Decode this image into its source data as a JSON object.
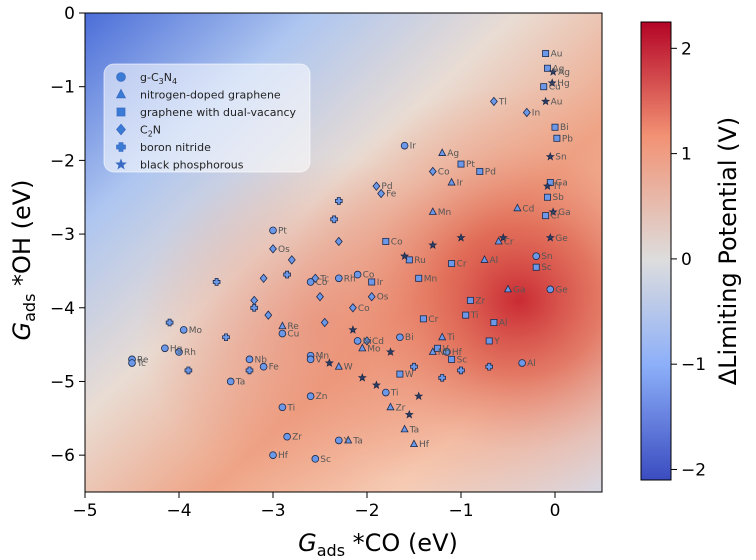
{
  "chart_data": {
    "type": "scatter",
    "xlabel_main": "G",
    "xlabel_sub": "ads",
    "xlabel_rest": " *CO (eV)",
    "ylabel_main": "G",
    "ylabel_sub": "ads",
    "ylabel_rest": " *OH (eV)",
    "xlim": [
      -5,
      0.5
    ],
    "ylim": [
      -6.5,
      0
    ],
    "xticks": [
      -5,
      -4,
      -3,
      -2,
      -1,
      0
    ],
    "yticks": [
      0,
      -1,
      -2,
      -3,
      -4,
      -5,
      -6
    ],
    "xtick_labels": [
      "−5",
      "−4",
      "−3",
      "−2",
      "−1",
      "0"
    ],
    "ytick_labels": [
      "0",
      "−1",
      "−2",
      "−3",
      "−4",
      "−5",
      "−6"
    ],
    "colorbar": {
      "label": "ΔLimiting Potential (V)",
      "range": [
        -2.1,
        2.25
      ],
      "ticks": [
        2,
        1,
        0,
        -1,
        -2
      ],
      "tick_labels": [
        "2",
        "1",
        "0",
        "−1",
        "−2"
      ],
      "colors": [
        "#3b4cc0",
        "#dddddd",
        "#b40426"
      ]
    },
    "legend": {
      "placement": "upper-left",
      "entries": [
        {
          "label_main": "g-C",
          "label_sub": "3",
          "label_mid": "N",
          "label_sub2": "4",
          "marker": "circle"
        },
        {
          "label_main": "nitrogen-doped graphene",
          "marker": "triangle"
        },
        {
          "label_main": "graphene with dual-vacancy",
          "marker": "square"
        },
        {
          "label_main": "C",
          "label_sub": "2",
          "label_mid": "N",
          "marker": "diamond"
        },
        {
          "label_main": "boron nitride",
          "marker": "plus"
        },
        {
          "label_main": "black phosphorous",
          "marker": "star"
        }
      ]
    },
    "series": [
      {
        "name": "g-C3N4",
        "marker": "circle",
        "points": [
          {
            "x": -1.6,
            "y": -1.8,
            "label": "Ir"
          },
          {
            "x": -3.0,
            "y": -2.95,
            "label": "Pt"
          },
          {
            "x": -2.1,
            "y": -3.55,
            "label": "Co"
          },
          {
            "x": -2.3,
            "y": -3.6,
            "label": "Rh"
          },
          {
            "x": -2.1,
            "y": -4.45,
            "label": "Ni"
          },
          {
            "x": -1.65,
            "y": -4.4,
            "label": "Bi"
          },
          {
            "x": -2.9,
            "y": -4.35,
            "label": "Cu"
          },
          {
            "x": -3.25,
            "y": -4.7,
            "label": "Nb"
          },
          {
            "x": -3.1,
            "y": -4.8,
            "label": "Fe"
          },
          {
            "x": -2.6,
            "y": -4.65,
            "label": "Mn"
          },
          {
            "x": -3.45,
            "y": -5.0,
            "label": "Ta"
          },
          {
            "x": -2.6,
            "y": -4.7,
            "label": "V"
          },
          {
            "x": -2.6,
            "y": -5.2,
            "label": "Zn"
          },
          {
            "x": -2.9,
            "y": -5.35,
            "label": "Ti"
          },
          {
            "x": -1.8,
            "y": -5.15,
            "label": "Ti"
          },
          {
            "x": -2.85,
            "y": -5.75,
            "label": "Zr"
          },
          {
            "x": -2.3,
            "y": -5.8,
            "label": "Y"
          },
          {
            "x": -3.0,
            "y": -6.0,
            "label": "Hf"
          },
          {
            "x": -2.55,
            "y": -6.05,
            "label": "Sc"
          },
          {
            "x": -3.95,
            "y": -4.3,
            "label": "Mo"
          },
          {
            "x": -4.15,
            "y": -4.55,
            "label": "Hg"
          },
          {
            "x": -4.0,
            "y": -4.6,
            "label": "Rh"
          },
          {
            "x": -4.5,
            "y": -4.7,
            "label": "Re"
          },
          {
            "x": -4.5,
            "y": -4.75,
            "label": "Tc"
          },
          {
            "x": -0.35,
            "y": -4.75,
            "label": "Al"
          },
          {
            "x": -0.05,
            "y": -3.75,
            "label": "Ge"
          },
          {
            "x": -0.2,
            "y": -3.3,
            "label": "Sn"
          },
          {
            "x": -1.15,
            "y": -4.6,
            "label": "Hf"
          },
          {
            "x": -2.6,
            "y": -3.65,
            "label": "Co"
          }
        ]
      },
      {
        "name": "nitrogen-doped graphene",
        "marker": "triangle",
        "points": [
          {
            "x": -1.2,
            "y": -1.9,
            "label": "Ag"
          },
          {
            "x": -1.1,
            "y": -2.3,
            "label": "Ir"
          },
          {
            "x": -1.3,
            "y": -2.7,
            "label": "Mn"
          },
          {
            "x": -0.4,
            "y": -2.65,
            "label": "Cd"
          },
          {
            "x": -0.6,
            "y": -3.1,
            "label": "Cr"
          },
          {
            "x": -0.75,
            "y": -3.35,
            "label": "Al"
          },
          {
            "x": -0.5,
            "y": -3.75,
            "label": "Ga"
          },
          {
            "x": -2.9,
            "y": -4.25,
            "label": "Re"
          },
          {
            "x": -2.05,
            "y": -4.55,
            "label": "Mo"
          },
          {
            "x": -1.3,
            "y": -4.6,
            "label": "Nb"
          },
          {
            "x": -1.2,
            "y": -4.4,
            "label": "Ti"
          },
          {
            "x": -2.3,
            "y": -4.8,
            "label": "W"
          },
          {
            "x": -1.6,
            "y": -5.65,
            "label": "Ta"
          },
          {
            "x": -1.75,
            "y": -5.35,
            "label": "Zr"
          },
          {
            "x": -1.5,
            "y": -5.85,
            "label": "Hf"
          },
          {
            "x": -2.2,
            "y": -5.8,
            "label": "Ta"
          }
        ]
      },
      {
        "name": "graphene with dual-vacancy",
        "marker": "square",
        "points": [
          {
            "x": -0.1,
            "y": -0.55,
            "label": "Au"
          },
          {
            "x": -0.08,
            "y": -0.75,
            "label": "Ag"
          },
          {
            "x": -0.12,
            "y": -1.0,
            "label": "Cu"
          },
          {
            "x": 0.0,
            "y": -1.55,
            "label": "Bi"
          },
          {
            "x": 0.02,
            "y": -1.7,
            "label": "Pb"
          },
          {
            "x": -1.0,
            "y": -2.05,
            "label": "Pt"
          },
          {
            "x": -0.8,
            "y": -2.15,
            "label": "Pd"
          },
          {
            "x": -0.05,
            "y": -2.3,
            "label": "Ga"
          },
          {
            "x": -0.08,
            "y": -2.5,
            "label": "Sb"
          },
          {
            "x": -1.8,
            "y": -3.1,
            "label": "Co"
          },
          {
            "x": -1.95,
            "y": -3.65,
            "label": "Ir"
          },
          {
            "x": -1.55,
            "y": -3.35,
            "label": "Ru"
          },
          {
            "x": -1.45,
            "y": -3.6,
            "label": "Mn"
          },
          {
            "x": -1.1,
            "y": -3.4,
            "label": "Cr"
          },
          {
            "x": -0.9,
            "y": -3.9,
            "label": "Zr"
          },
          {
            "x": -0.95,
            "y": -4.1,
            "label": "Ti"
          },
          {
            "x": -1.4,
            "y": -4.15,
            "label": "Cr"
          },
          {
            "x": -0.65,
            "y": -4.2,
            "label": "Al"
          },
          {
            "x": -0.7,
            "y": -4.45,
            "label": "Y"
          },
          {
            "x": -1.25,
            "y": -4.55,
            "label": "V"
          },
          {
            "x": -1.65,
            "y": -4.9,
            "label": "W"
          },
          {
            "x": -1.1,
            "y": -4.7,
            "label": "Sc"
          },
          {
            "x": -0.2,
            "y": -3.45,
            "label": "Sc"
          },
          {
            "x": -0.1,
            "y": -2.75,
            "label": "Cr"
          }
        ]
      },
      {
        "name": "C2N",
        "marker": "diamond",
        "points": [
          {
            "x": -1.3,
            "y": -2.15,
            "label": "Co"
          },
          {
            "x": -1.9,
            "y": -2.35,
            "label": "Pd"
          },
          {
            "x": -1.85,
            "y": -2.45,
            "label": "Fe"
          },
          {
            "x": -2.15,
            "y": -4.0,
            "label": "Co"
          },
          {
            "x": -1.95,
            "y": -3.85,
            "label": "Os"
          },
          {
            "x": -2.0,
            "y": -4.45,
            "label": "Cd"
          },
          {
            "x": -3.0,
            "y": -3.2,
            "label": "Os"
          },
          {
            "x": -2.55,
            "y": -3.6,
            "label": "Tc"
          },
          {
            "x": -0.65,
            "y": -1.2,
            "label": "Tl"
          },
          {
            "x": -0.3,
            "y": -1.35,
            "label": "In"
          },
          {
            "x": -3.1,
            "y": -3.6,
            "label": ""
          },
          {
            "x": -3.2,
            "y": -3.9,
            "label": ""
          },
          {
            "x": -3.05,
            "y": -4.1,
            "label": ""
          },
          {
            "x": -2.8,
            "y": -3.35,
            "label": ""
          },
          {
            "x": -2.3,
            "y": -3.1,
            "label": ""
          },
          {
            "x": -2.5,
            "y": -3.85,
            "label": ""
          },
          {
            "x": -2.45,
            "y": -4.2,
            "label": ""
          }
        ]
      },
      {
        "name": "boron nitride",
        "marker": "plus",
        "points": [
          {
            "x": -4.1,
            "y": -4.2,
            "label": ""
          },
          {
            "x": -3.6,
            "y": -3.65,
            "label": ""
          },
          {
            "x": -3.2,
            "y": -4.0,
            "label": ""
          },
          {
            "x": -3.5,
            "y": -4.4,
            "label": ""
          },
          {
            "x": -3.9,
            "y": -4.85,
            "label": ""
          },
          {
            "x": -3.25,
            "y": -4.85,
            "label": ""
          },
          {
            "x": -2.35,
            "y": -2.8,
            "label": ""
          },
          {
            "x": -2.3,
            "y": -2.55,
            "label": ""
          },
          {
            "x": -2.85,
            "y": -3.55,
            "label": ""
          },
          {
            "x": -1.0,
            "y": -4.85,
            "label": ""
          },
          {
            "x": -1.5,
            "y": -4.8,
            "label": ""
          },
          {
            "x": -1.2,
            "y": -4.95,
            "label": ""
          },
          {
            "x": -0.7,
            "y": -4.8,
            "label": ""
          }
        ]
      },
      {
        "name": "black phosphorous",
        "marker": "star",
        "points": [
          {
            "x": -0.03,
            "y": -0.95,
            "label": "Hg"
          },
          {
            "x": -0.02,
            "y": -0.8,
            "label": "Ag"
          },
          {
            "x": -0.1,
            "y": -1.2,
            "label": "Au"
          },
          {
            "x": -0.05,
            "y": -1.95,
            "label": "Sn"
          },
          {
            "x": -0.08,
            "y": -2.35,
            "label": "Tl"
          },
          {
            "x": -0.02,
            "y": -2.7,
            "label": "Ga"
          },
          {
            "x": -0.05,
            "y": -3.05,
            "label": "Ge"
          },
          {
            "x": -2.15,
            "y": -4.3,
            "label": ""
          },
          {
            "x": -2.4,
            "y": -4.75,
            "label": ""
          },
          {
            "x": -2.05,
            "y": -4.95,
            "label": ""
          },
          {
            "x": -1.75,
            "y": -4.6,
            "label": ""
          },
          {
            "x": -1.9,
            "y": -5.05,
            "label": ""
          },
          {
            "x": -1.45,
            "y": -5.2,
            "label": ""
          },
          {
            "x": -1.55,
            "y": -5.45,
            "label": ""
          },
          {
            "x": -1.3,
            "y": -3.15,
            "label": ""
          },
          {
            "x": -1.6,
            "y": -3.3,
            "label": ""
          },
          {
            "x": -1.0,
            "y": -3.05,
            "label": ""
          },
          {
            "x": -0.55,
            "y": -3.05,
            "label": ""
          }
        ]
      }
    ]
  }
}
